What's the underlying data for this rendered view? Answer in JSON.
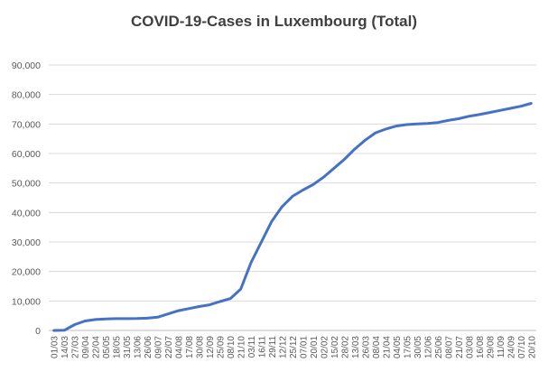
{
  "chart_data": {
    "type": "line",
    "title": "COVID-19-Cases in Luxembourg (Total)",
    "xlabel": "",
    "ylabel": "",
    "ylim": [
      0,
      90000
    ],
    "yticks": [
      "0",
      "10,000",
      "20,000",
      "30,000",
      "40,000",
      "50,000",
      "60,000",
      "70,000",
      "80,000",
      "90,000"
    ],
    "grid": "horizontal",
    "legend": "none",
    "line_color": "#4472C4",
    "categories": [
      "01/03",
      "14/03",
      "27/03",
      "09/04",
      "22/04",
      "05/05",
      "18/05",
      "31/05",
      "13/06",
      "26/06",
      "09/07",
      "22/07",
      "04/08",
      "17/08",
      "30/08",
      "12/09",
      "25/09",
      "08/10",
      "21/10",
      "03/11",
      "16/11",
      "29/11",
      "12/12",
      "25/12",
      "07/01",
      "20/01",
      "02/02",
      "15/02",
      "28/02",
      "13/03",
      "26/03",
      "08/04",
      "21/04",
      "04/05",
      "17/05",
      "30/05",
      "12/06",
      "25/06",
      "08/07",
      "21/07",
      "03/08",
      "16/08",
      "29/08",
      "11/09",
      "24/09",
      "07/10",
      "20/10"
    ],
    "series": [
      {
        "values": [
          0,
          50,
          2000,
          3200,
          3700,
          3900,
          4000,
          4000,
          4050,
          4150,
          4500,
          5600,
          6700,
          7400,
          8100,
          8700,
          9800,
          10800,
          14000,
          23000,
          30000,
          37000,
          42000,
          45500,
          47600,
          49500,
          52000,
          55000,
          58000,
          61500,
          64500,
          67000,
          68300,
          69300,
          69800,
          70000,
          70200,
          70500,
          71200,
          71800,
          72600,
          73200,
          73900,
          74600,
          75300,
          76000,
          77000
        ]
      }
    ]
  }
}
